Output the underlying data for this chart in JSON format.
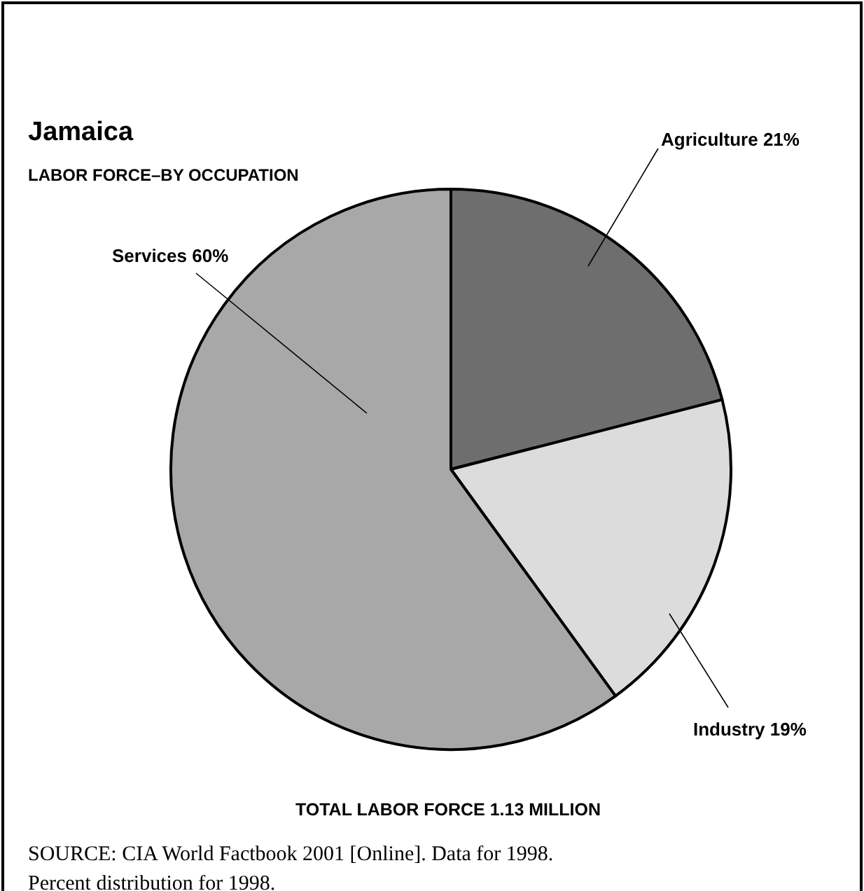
{
  "chart_data": {
    "type": "pie",
    "title": "Jamaica",
    "subtitle": "LABOR FORCE–BY OCCUPATION",
    "categories": [
      "Agriculture",
      "Industry",
      "Services"
    ],
    "values": [
      21,
      19,
      60
    ],
    "value_labels": [
      "21%",
      "19%",
      "60%"
    ],
    "colors": [
      "#6e6e6e",
      "#dcdcdc",
      "#a8a8a8"
    ],
    "annotations": [
      "TOTAL LABOR FORCE 1.13 MILLION",
      "SOURCE: CIA World Factbook 2001 [Online]. Data for 1998.",
      "Percent distribution for 1998."
    ]
  }
}
